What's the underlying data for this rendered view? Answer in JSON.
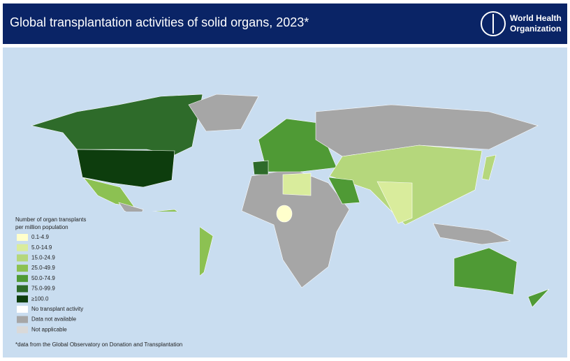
{
  "header": {
    "title": "Global transplantation activities of solid organs, 2023*",
    "logo_lines": [
      "World Health",
      "Organization"
    ]
  },
  "legend": {
    "title_lines": [
      "Number of organ transplants",
      "per million population"
    ],
    "items": [
      {
        "label": "0.1-4.9",
        "color": "#ffffcc"
      },
      {
        "label": "5.0-14.9",
        "color": "#d9ec9c"
      },
      {
        "label": "15.0-24.9",
        "color": "#b5d77c"
      },
      {
        "label": "25.0-49.9",
        "color": "#8cc152"
      },
      {
        "label": "50.0-74.9",
        "color": "#4f9a35"
      },
      {
        "label": "75.0-99.9",
        "color": "#2e6b2a"
      },
      {
        "label": "≥100.0",
        "color": "#0d3d0d"
      },
      {
        "label": "No transplant activity",
        "color": "#ffffff"
      },
      {
        "label": "Data not available",
        "color": "#a6a6a6"
      },
      {
        "label": "Not applicable",
        "color": "#d9d9d9"
      }
    ]
  },
  "footnote": "*data from the Global Observatory on Donation and Transplantation"
}
